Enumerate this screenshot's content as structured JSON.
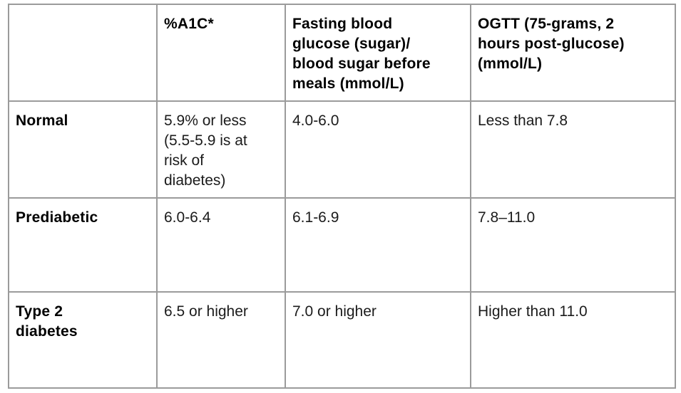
{
  "table": {
    "description": "Blood sugar reference ranges table",
    "border_color": "#9b9b9b",
    "text_color": "#1b1b1b",
    "header_text_color": "#000000",
    "background_color": "#ffffff",
    "header": {
      "col0": "",
      "col1": "%A1C*",
      "col2": "Fasting blood\nglucose (sugar)/\nblood sugar before\nmeals (mmol/L)",
      "col3": "OGTT (75-grams, 2\nhours post-glucose)\n(mmol/L)"
    },
    "rows": [
      {
        "label": "Normal",
        "a1c": "5.9% or less\n(5.5-5.9 is at\nrisk of\ndiabetes)",
        "fasting": "4.0-6.0",
        "ogtt": "Less than 7.8"
      },
      {
        "label": "Prediabetic",
        "a1c": "6.0-6.4",
        "fasting": "6.1-6.9",
        "ogtt": "7.8–11.0"
      },
      {
        "label": "Type 2\ndiabetes",
        "a1c": "6.5 or higher",
        "fasting": "7.0 or higher",
        "ogtt": "Higher than 11.0"
      }
    ]
  }
}
